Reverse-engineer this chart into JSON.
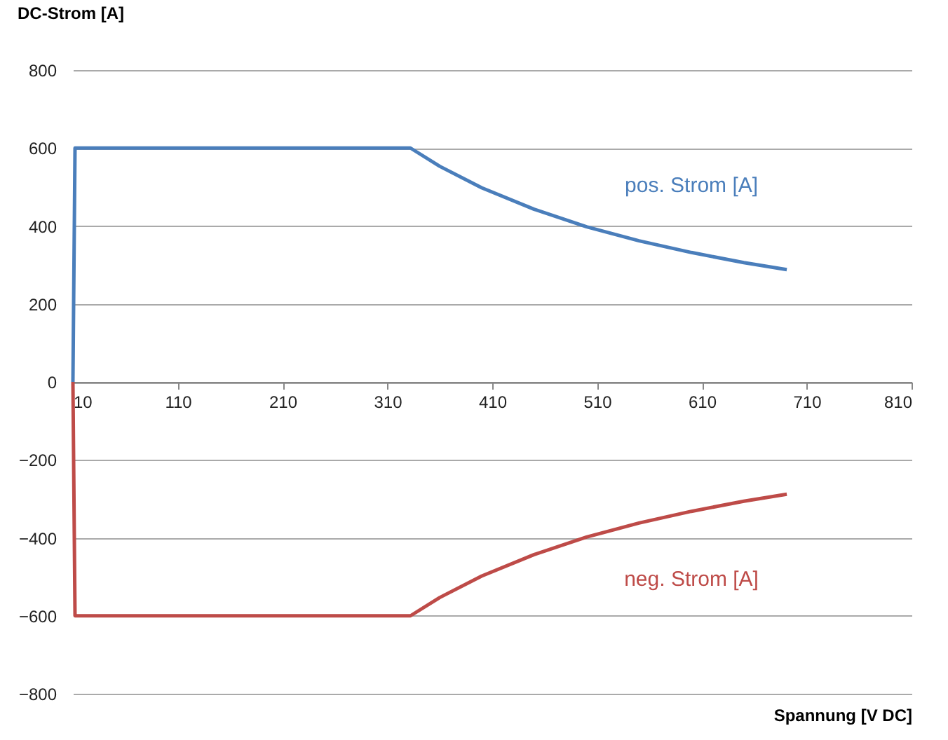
{
  "chart_data": {
    "type": "line",
    "xlabel": "Spannung [V DC]",
    "ylabel": "DC-Strom [A]",
    "xlim": [
      10,
      810
    ],
    "xticks": [
      10,
      110,
      210,
      310,
      410,
      510,
      610,
      710,
      810
    ],
    "ylim": [
      -800,
      800
    ],
    "yticks": [
      -800,
      -600,
      -400,
      -200,
      0,
      200,
      400,
      600,
      800
    ],
    "grid": "y",
    "legend": false,
    "marker": "none",
    "line_style": "solid",
    "series": [
      {
        "name": "pos. Strom [A]",
        "color": "#4a7ebb",
        "x": [
          10,
          12,
          332,
          360,
          400,
          450,
          500,
          550,
          600,
          650,
          691
        ],
        "values": [
          0,
          600,
          600,
          553,
          498,
          443,
          398,
          362,
          332,
          306,
          288
        ]
      },
      {
        "name": "neg. Strom [A]",
        "color": "#be4b48",
        "x": [
          10,
          12,
          332,
          360,
          400,
          450,
          500,
          550,
          600,
          650,
          691
        ],
        "values": [
          0,
          -600,
          -600,
          -553,
          -498,
          -443,
          -398,
          -362,
          -332,
          -306,
          -288
        ]
      }
    ]
  }
}
